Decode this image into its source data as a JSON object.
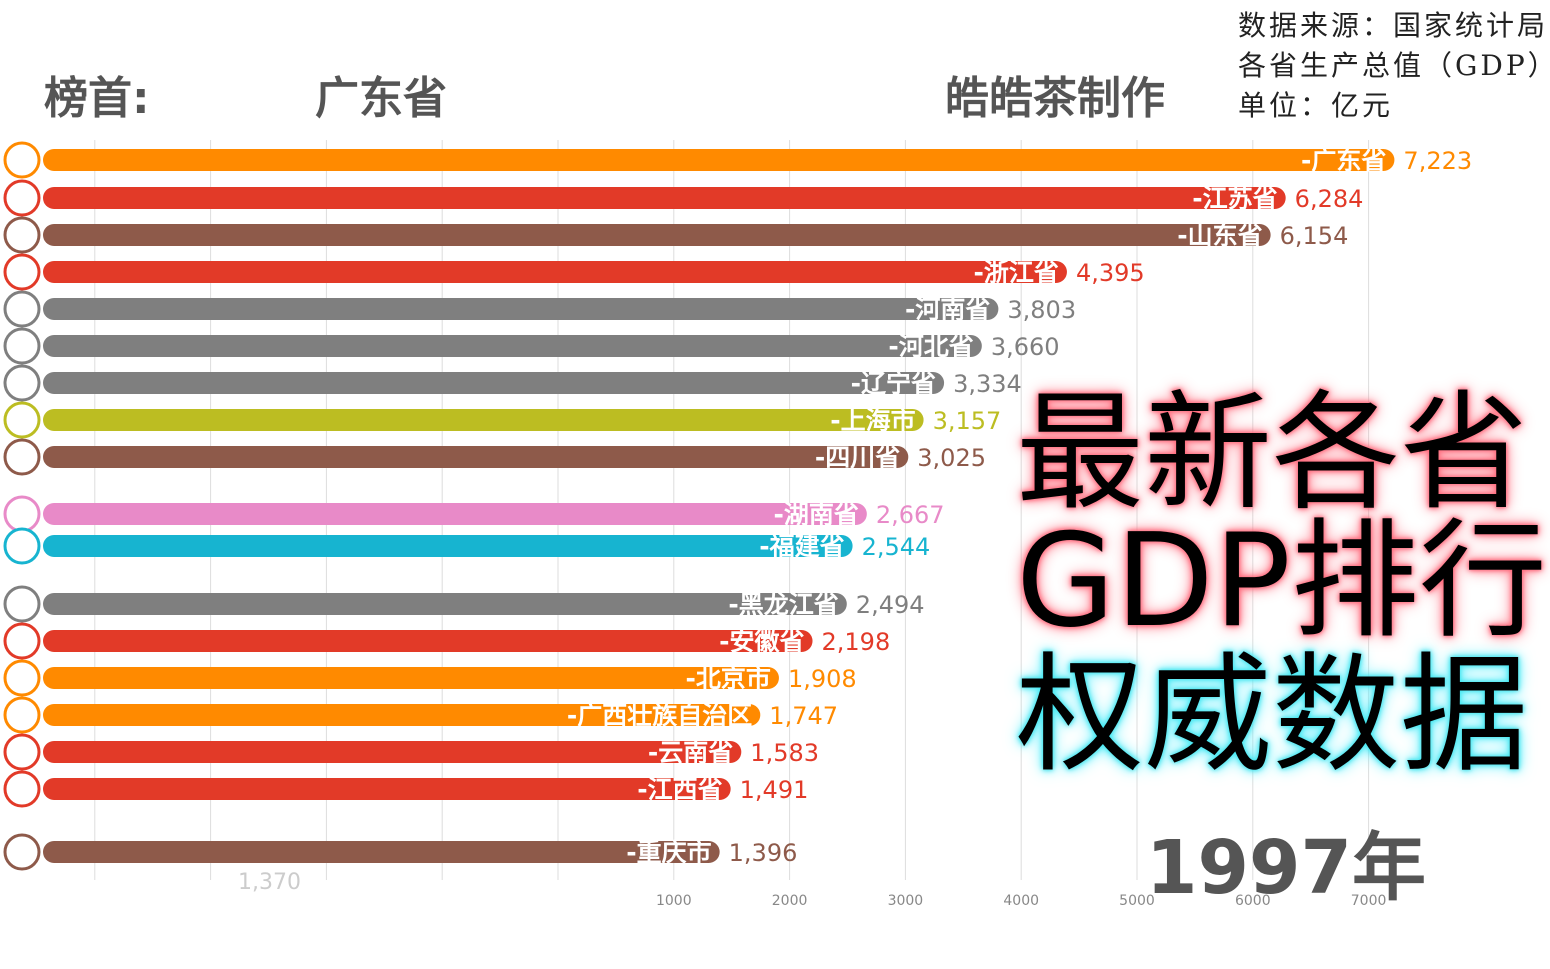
{
  "header": {
    "leader_label": "榜首:",
    "leader_value": "广东省",
    "author": "皓皓茶制作"
  },
  "source": {
    "line1": "数据来源：国家统计局",
    "line2": "各省生产总值（GDP）",
    "line3": "单位：亿元"
  },
  "overlay": {
    "title": "最新各省GDP排行",
    "subtitle": "权威数据",
    "year": "1997年"
  },
  "chart_data": {
    "type": "bar",
    "orientation": "horizontal",
    "unit": "亿元",
    "year": "1997年",
    "x_ticks": [
      1000,
      2000,
      3000,
      4000,
      5000,
      6000,
      7000
    ],
    "grid": true,
    "bars": [
      {
        "label": "-广东省",
        "value": 7223,
        "value_label": "7,223",
        "color": "#FF8A00"
      },
      {
        "label": "-江苏省",
        "value": 6284,
        "value_label": "6,284",
        "color": "#E23A28"
      },
      {
        "label": "-山东省",
        "value": 6154,
        "value_label": "6,154",
        "color": "#8E5A4A"
      },
      {
        "label": "-浙江省",
        "value": 4395,
        "value_label": "4,395",
        "color": "#E23A28"
      },
      {
        "label": "-河南省",
        "value": 3803,
        "value_label": "3,803",
        "color": "#7F7F7F"
      },
      {
        "label": "-河北省",
        "value": 3660,
        "value_label": "3,660",
        "color": "#7F7F7F"
      },
      {
        "label": "-辽宁省",
        "value": 3334,
        "value_label": "3,334",
        "color": "#7F7F7F"
      },
      {
        "label": "-上海市",
        "value": 3157,
        "value_label": "3,157",
        "color": "#BCBD22"
      },
      {
        "label": "-四川省",
        "value": 3025,
        "value_label": "3,025",
        "color": "#8E5A4A"
      },
      {
        "label": "-湖南省",
        "value": 2667,
        "value_label": "2,667",
        "color": "#E88AC8"
      },
      {
        "label": "-福建省",
        "value": 2544,
        "value_label": "2,544",
        "color": "#17B4D0"
      },
      {
        "label": "-黑龙江省",
        "value": 2494,
        "value_label": "2,494",
        "color": "#7F7F7F"
      },
      {
        "label": "-安徽省",
        "value": 2198,
        "value_label": "2,198",
        "color": "#E23A28"
      },
      {
        "label": "-北京市",
        "value": 1908,
        "value_label": "1,908",
        "color": "#FF8A00"
      },
      {
        "label": "-广西壮族自治区",
        "value": 1747,
        "value_label": "1,747",
        "color": "#FF8A00"
      },
      {
        "label": "-云南省",
        "value": 1583,
        "value_label": "1,583",
        "color": "#E23A28"
      },
      {
        "label": "-江西省",
        "value": 1491,
        "value_label": "1,491",
        "color": "#E23A28"
      },
      {
        "label": "-重庆市",
        "value": 1396,
        "value_label": "1,396",
        "color": "#8E5A4A"
      }
    ],
    "faded_value_label": "1,370"
  }
}
